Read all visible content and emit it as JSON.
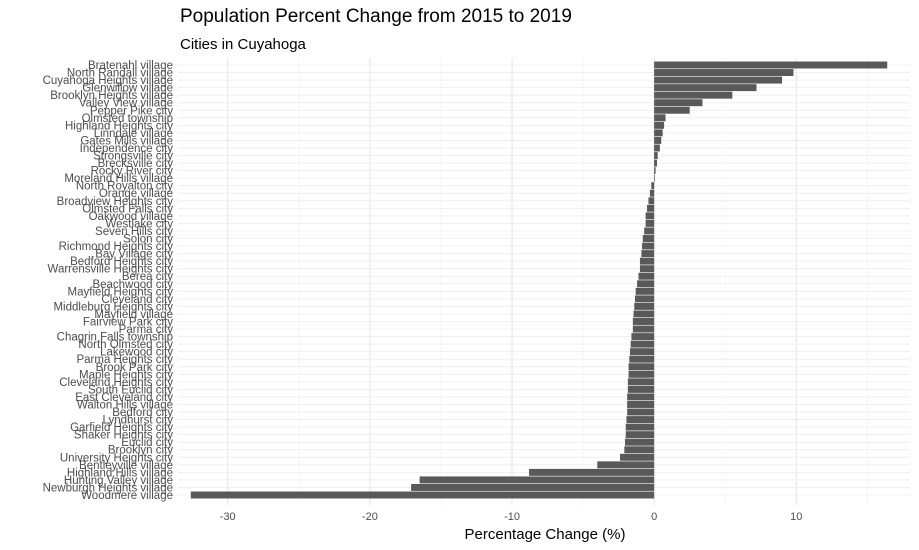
{
  "chart_data": {
    "type": "bar",
    "orientation": "horizontal",
    "title": "Population Percent Change from 2015 to 2019",
    "subtitle": "Cities in Cuyahoga",
    "xlabel": "Percentage Change (%)",
    "ylabel": "",
    "xlim": [
      -33.5,
      18
    ],
    "xticks": [
      -30,
      -20,
      -10,
      0,
      10
    ],
    "grid": true,
    "bar_color": "#595959",
    "categories": [
      "Bratenahl village",
      "North Randall village",
      "Cuyahoga Heights village",
      "Glenwillow village",
      "Brooklyn Heights village",
      "Valley View village",
      "Pepper Pike city",
      "Olmsted township",
      "Highland Heights city",
      "Linndale village",
      "Gates Mills village",
      "Independence city",
      "Strongsville city",
      "Brecksville city",
      "Rocky River city",
      "Moreland Hills village",
      "North Royalton city",
      "Orange village",
      "Broadview Heights city",
      "Olmsted Falls city",
      "Oakwood village",
      "Westlake city",
      "Seven Hills city",
      "Solon city",
      "Richmond Heights city",
      "Bay Village city",
      "Bedford Heights city",
      "Warrensville Heights city",
      "Berea city",
      "Beachwood city",
      "Mayfield Heights city",
      "Cleveland city",
      "Middleburg Heights city",
      "Mayfield village",
      "Fairview Park city",
      "Parma city",
      "Chagrin Falls township",
      "North Olmsted city",
      "Lakewood city",
      "Parma Heights city",
      "Brook Park city",
      "Maple Heights city",
      "Cleveland Heights city",
      "South Euclid city",
      "East Cleveland city",
      "Walton Hills village",
      "Bedford city",
      "Lyndhurst city",
      "Garfield Heights city",
      "Shaker Heights city",
      "Euclid city",
      "Brooklyn city",
      "University Heights city",
      "Bentleyville village",
      "Highland Hills village",
      "Hunting Valley village",
      "Newburgh Heights village",
      "Woodmere village"
    ],
    "values": [
      16.4,
      9.8,
      9.0,
      7.2,
      5.5,
      3.4,
      2.5,
      0.8,
      0.7,
      0.6,
      0.5,
      0.4,
      0.25,
      0.2,
      0.1,
      0.05,
      -0.2,
      -0.3,
      -0.4,
      -0.5,
      -0.6,
      -0.6,
      -0.7,
      -0.8,
      -0.85,
      -0.9,
      -1.0,
      -1.0,
      -1.1,
      -1.2,
      -1.3,
      -1.35,
      -1.4,
      -1.45,
      -1.5,
      -1.5,
      -1.6,
      -1.65,
      -1.7,
      -1.75,
      -1.8,
      -1.8,
      -1.85,
      -1.85,
      -1.9,
      -1.9,
      -1.9,
      -1.95,
      -2.0,
      -2.0,
      -2.05,
      -2.1,
      -2.4,
      -4.0,
      -8.8,
      -16.5,
      -17.1,
      -32.6
    ]
  }
}
